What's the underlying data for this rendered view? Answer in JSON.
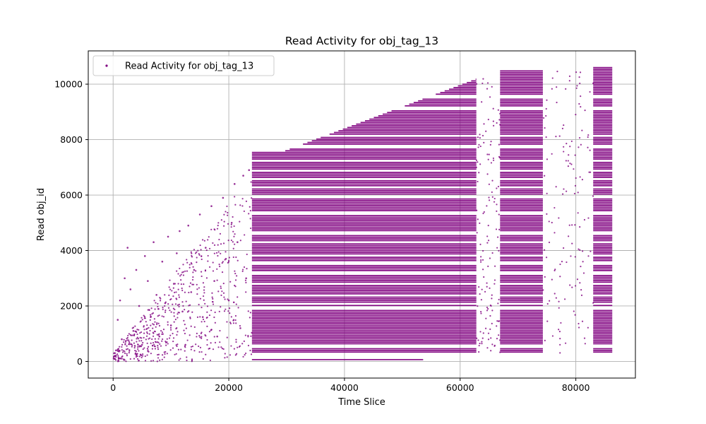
{
  "chart_data": {
    "type": "scatter",
    "title": "Read Activity for obj_tag_13",
    "xlabel": "Time Slice",
    "ylabel": "Read obj_id",
    "xlim": [
      -4300,
      90300
    ],
    "ylim": [
      -600,
      11200
    ],
    "xticks": [
      0,
      20000,
      40000,
      60000,
      80000
    ],
    "yticks": [
      0,
      2000,
      4000,
      6000,
      8000,
      10000
    ],
    "grid": true,
    "legend_position": "top-left",
    "series": [
      {
        "name": "Read Activity for obj_tag_13",
        "color": "#800080",
        "marker": "dot",
        "dense_regions": [
          {
            "x": [
              24000,
              62800
            ],
            "y_min": 300,
            "y_max_start": 7500,
            "y_max_end": 10150,
            "slope_start": 29000
          },
          {
            "x": [
              66900,
              74300
            ],
            "y_min": 300,
            "y_max": 10450
          },
          {
            "x": [
              83000,
              86300
            ],
            "y_min": 300,
            "y_max": 10600
          }
        ],
        "sparse_points_approx": [
          [
            300,
            200
          ],
          [
            500,
            400
          ],
          [
            800,
            1500
          ],
          [
            1000,
            100
          ],
          [
            1200,
            2200
          ],
          [
            1500,
            800
          ],
          [
            2000,
            3000
          ],
          [
            2500,
            4100
          ],
          [
            3000,
            2600
          ],
          [
            3500,
            1100
          ],
          [
            4000,
            3300
          ],
          [
            4500,
            2000
          ],
          [
            5000,
            600
          ],
          [
            5500,
            3800
          ],
          [
            6000,
            2900
          ],
          [
            6500,
            1600
          ],
          [
            7000,
            4300
          ],
          [
            7500,
            2400
          ],
          [
            8000,
            900
          ],
          [
            8500,
            3600
          ],
          [
            9000,
            2100
          ],
          [
            9500,
            4500
          ],
          [
            10000,
            1300
          ],
          [
            10500,
            2800
          ],
          [
            11000,
            3900
          ],
          [
            11500,
            4700
          ],
          [
            12000,
            1800
          ],
          [
            12500,
            600
          ],
          [
            13000,
            4900
          ],
          [
            13500,
            2500
          ],
          [
            14000,
            3300
          ],
          [
            15000,
            5300
          ],
          [
            15500,
            1600
          ],
          [
            16000,
            4100
          ],
          [
            17000,
            5600
          ],
          [
            17500,
            2900
          ],
          [
            18000,
            900
          ],
          [
            19000,
            5900
          ],
          [
            19500,
            3700
          ],
          [
            20000,
            2200
          ],
          [
            20500,
            5000
          ],
          [
            21000,
            6400
          ],
          [
            21500,
            4300
          ],
          [
            22000,
            1200
          ],
          [
            22500,
            6700
          ],
          [
            23000,
            3000
          ],
          [
            23500,
            6900
          ]
        ]
      }
    ]
  }
}
